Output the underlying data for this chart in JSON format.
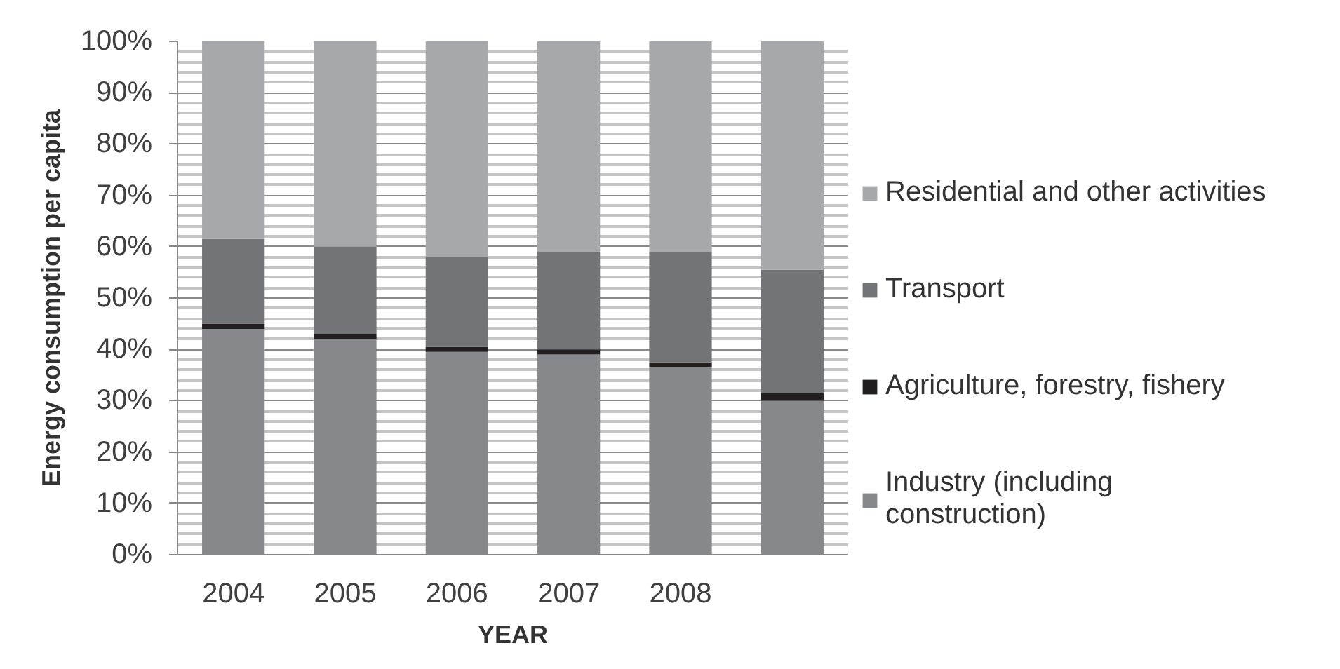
{
  "chart_data": {
    "type": "bar",
    "stacked": true,
    "xlabel": "YEAR",
    "ylabel": "Energy consumption per capita",
    "categories": [
      "2004",
      "2005",
      "2006",
      "2007",
      "2008",
      null
    ],
    "series": [
      {
        "name": "Industry (including construction)",
        "color": "#87888b",
        "values": [
          44,
          42,
          39.5,
          39,
          36.5,
          30
        ]
      },
      {
        "name": "Agriculture, forestry, fishery",
        "color": "#231f20",
        "values": [
          1,
          1,
          1,
          1,
          1,
          1.5
        ]
      },
      {
        "name": "Transport",
        "color": "#737477",
        "values": [
          16.5,
          17,
          17.5,
          19,
          21.5,
          24
        ]
      },
      {
        "name": "Residential and other activities",
        "color": "#a7a8ab",
        "values": [
          38.5,
          40,
          42,
          41,
          41,
          44.5
        ]
      }
    ],
    "ylim": [
      0,
      100
    ],
    "yticks": [
      {
        "value": 0,
        "label": "0%"
      },
      {
        "value": 2,
        "label": null
      },
      {
        "value": 4,
        "label": null
      },
      {
        "value": 6,
        "label": null
      },
      {
        "value": 8,
        "label": null
      },
      {
        "value": 10,
        "label": "10%"
      },
      {
        "value": 12,
        "label": null
      },
      {
        "value": 14,
        "label": null
      },
      {
        "value": 16,
        "label": null
      },
      {
        "value": 18,
        "label": null
      },
      {
        "value": 20,
        "label": "20%"
      },
      {
        "value": 22,
        "label": null
      },
      {
        "value": 24,
        "label": null
      },
      {
        "value": 26,
        "label": null
      },
      {
        "value": 28,
        "label": null
      },
      {
        "value": 30,
        "label": "30%"
      },
      {
        "value": 32,
        "label": null
      },
      {
        "value": 34,
        "label": null
      },
      {
        "value": 36,
        "label": null
      },
      {
        "value": 38,
        "label": null
      },
      {
        "value": 40,
        "label": "40%"
      },
      {
        "value": 42,
        "label": null
      },
      {
        "value": 44,
        "label": null
      },
      {
        "value": 46,
        "label": null
      },
      {
        "value": 48,
        "label": null
      },
      {
        "value": 50,
        "label": "50%"
      },
      {
        "value": 52,
        "label": null
      },
      {
        "value": 54,
        "label": null
      },
      {
        "value": 56,
        "label": null
      },
      {
        "value": 58,
        "label": null
      },
      {
        "value": 60,
        "label": "60%"
      },
      {
        "value": 62,
        "label": null
      },
      {
        "value": 64,
        "label": null
      },
      {
        "value": 66,
        "label": null
      },
      {
        "value": 68,
        "label": null
      },
      {
        "value": 70,
        "label": "70%"
      },
      {
        "value": 72,
        "label": null
      },
      {
        "value": 74,
        "label": null
      },
      {
        "value": 76,
        "label": null
      },
      {
        "value": 78,
        "label": null
      },
      {
        "value": 80,
        "label": "80%"
      },
      {
        "value": 82,
        "label": null
      },
      {
        "value": 84,
        "label": null
      },
      {
        "value": 86,
        "label": null
      },
      {
        "value": 88,
        "label": null
      },
      {
        "value": 90,
        "label": "90%"
      },
      {
        "value": 92,
        "label": null
      },
      {
        "value": 94,
        "label": null
      },
      {
        "value": 96,
        "label": null
      },
      {
        "value": 98,
        "label": null
      },
      {
        "value": 100,
        "label": "100%"
      }
    ],
    "grid": "y",
    "legend": "right"
  }
}
